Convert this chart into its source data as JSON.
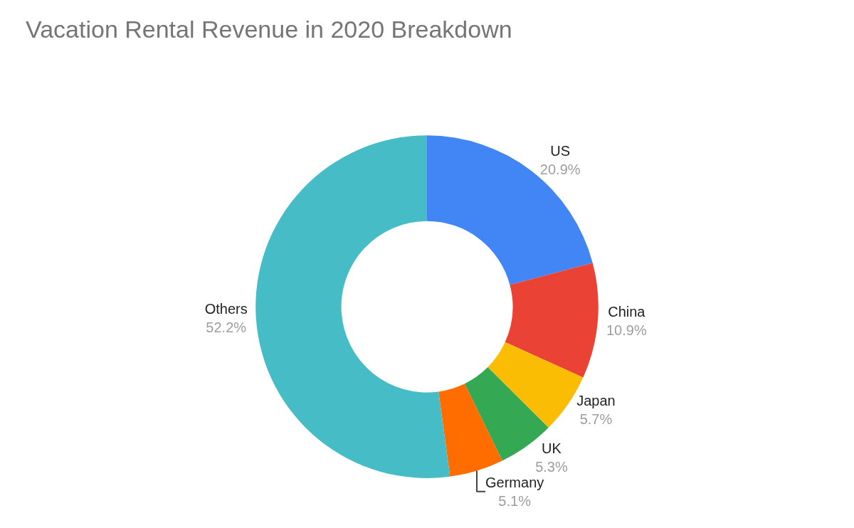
{
  "chart_data": {
    "type": "donut",
    "title": "Vacation Rental Revenue in 2020 Breakdown",
    "categories": [
      "US",
      "China",
      "Japan",
      "UK",
      "Germany",
      "Others"
    ],
    "values": [
      20.9,
      10.9,
      5.7,
      5.3,
      5.1,
      52.2
    ],
    "value_labels": [
      "20.9%",
      "10.9%",
      "5.7%",
      "5.3%",
      "5.1%",
      "52.2%"
    ],
    "colors": [
      "#4285f4",
      "#ea4335",
      "#fbbc04",
      "#34a853",
      "#ff6d01",
      "#46bdc6"
    ],
    "legend": false
  }
}
